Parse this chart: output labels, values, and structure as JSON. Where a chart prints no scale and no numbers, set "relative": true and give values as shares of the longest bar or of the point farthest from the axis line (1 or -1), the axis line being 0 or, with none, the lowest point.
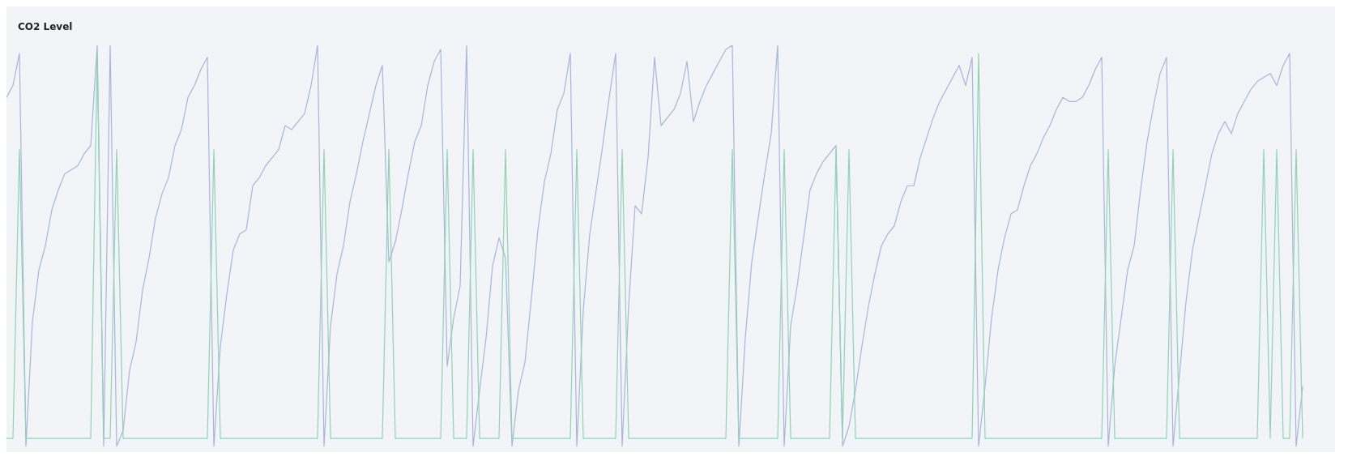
{
  "chart_data": {
    "type": "line",
    "title": "CO2 Level",
    "relative": true,
    "tick_labels": false,
    "marker": "none",
    "line_style": "solid",
    "categories": [
      null,
      null,
      null,
      null,
      null,
      null,
      null,
      null,
      null,
      null,
      null,
      null,
      null,
      null,
      null,
      null,
      null,
      null,
      null,
      null,
      null,
      null,
      null,
      null,
      null,
      null,
      null,
      null,
      null,
      null,
      null,
      null,
      null,
      null,
      null,
      null,
      null,
      null,
      null,
      null,
      null,
      null,
      null,
      null,
      null,
      null,
      null,
      null,
      null,
      null,
      null,
      null,
      null,
      null,
      null,
      null,
      null,
      null,
      null,
      null,
      null,
      null,
      null,
      null,
      null,
      null,
      null,
      null,
      null,
      null,
      null,
      null,
      null,
      null,
      null,
      null,
      null,
      null,
      null,
      null,
      null,
      null,
      null,
      null,
      null,
      null,
      null,
      null,
      null,
      null,
      null,
      null,
      null,
      null,
      null,
      null,
      null,
      null,
      null,
      null,
      null,
      null,
      null,
      null,
      null,
      null,
      null,
      null,
      null,
      null,
      null,
      null,
      null,
      null,
      null,
      null,
      null,
      null,
      null,
      null,
      null,
      null,
      null,
      null,
      null,
      null,
      null,
      null,
      null,
      null,
      null,
      null,
      null,
      null,
      null,
      null,
      null,
      null,
      null,
      null,
      null,
      null,
      null,
      null,
      null,
      null,
      null,
      null,
      null,
      null,
      null,
      null,
      null,
      null,
      null,
      null,
      null,
      null,
      null,
      null,
      null,
      null,
      null,
      null,
      null,
      null,
      null,
      null,
      null,
      null,
      null,
      null,
      null,
      null,
      null,
      null,
      null,
      null,
      null,
      null,
      null,
      null,
      null,
      null,
      null,
      null,
      null,
      null,
      null,
      null,
      null,
      null,
      null,
      null,
      null,
      null,
      null,
      null,
      null,
      null,
      null
    ],
    "series": [
      {
        "color": "#a9b4d8",
        "values": [
          0.87,
          0.9,
          0.98,
          0,
          0.31,
          0.44,
          0.5,
          0.59,
          0.64,
          0.68,
          0.69,
          0.7,
          0.73,
          0.75,
          1.0,
          0,
          1.0,
          0,
          0.04,
          0.19,
          0.26,
          0.39,
          0.47,
          0.57,
          0.63,
          0.67,
          0.75,
          0.79,
          0.87,
          0.9,
          0.94,
          0.97,
          0,
          0.25,
          0.38,
          0.49,
          0.53,
          0.54,
          0.65,
          0.67,
          0.7,
          0.72,
          0.74,
          0.8,
          0.79,
          0.81,
          0.83,
          0.9,
          1.0,
          0,
          0.3,
          0.43,
          0.5,
          0.61,
          0.68,
          0.76,
          0.83,
          0.9,
          0.95,
          0.46,
          0.51,
          0.59,
          0.68,
          0.76,
          0.8,
          0.9,
          0.96,
          0.99,
          0.2,
          0.32,
          0.4,
          1.0,
          0,
          0.14,
          0.27,
          0.45,
          0.52,
          0.47,
          0,
          0.14,
          0.21,
          0.37,
          0.54,
          0.66,
          0.73,
          0.84,
          0.88,
          0.98,
          0,
          0.34,
          0.53,
          0.64,
          0.75,
          0.87,
          0.98,
          0,
          0.35,
          0.6,
          0.58,
          0.72,
          0.97,
          0.8,
          0.82,
          0.84,
          0.88,
          0.96,
          0.81,
          0.86,
          0.9,
          0.93,
          0.96,
          0.99,
          1.0,
          0,
          0.27,
          0.46,
          0.57,
          0.68,
          0.78,
          1.0,
          0,
          0.3,
          0.4,
          0.52,
          0.64,
          0.68,
          0.71,
          0.73,
          0.75,
          0,
          0.05,
          0.14,
          0.25,
          0.35,
          0.43,
          0.5,
          0.53,
          0.55,
          0.61,
          0.65,
          0.65,
          0.72,
          0.77,
          0.82,
          0.86,
          0.89,
          0.92,
          0.95,
          0.9,
          0.97,
          0,
          0.15,
          0.32,
          0.44,
          0.52,
          0.58,
          0.59,
          0.65,
          0.7,
          0.73,
          0.77,
          0.8,
          0.84,
          0.87,
          0.86,
          0.86,
          0.87,
          0.9,
          0.94,
          0.97,
          0,
          0.2,
          0.32,
          0.44,
          0.5,
          0.64,
          0.76,
          0.85,
          0.93,
          0.97,
          0,
          0.18,
          0.36,
          0.49,
          0.57,
          0.65,
          0.73,
          0.78,
          0.81,
          0.78,
          0.83,
          0.86,
          0.89,
          0.91,
          0.92,
          0.93,
          0.9,
          0.95,
          0.98,
          0,
          0.15
        ]
      },
      {
        "color": "#8fd3b6",
        "values": [
          0.02,
          0.02,
          0.74,
          0.02,
          0.02,
          0.02,
          0.02,
          0.02,
          0.02,
          0.02,
          0.02,
          0.02,
          0.02,
          0.02,
          0.98,
          0.02,
          0.02,
          0.74,
          0.02,
          0.02,
          0.02,
          0.02,
          0.02,
          0.02,
          0.02,
          0.02,
          0.02,
          0.02,
          0.02,
          0.02,
          0.02,
          0.02,
          0.74,
          0.02,
          0.02,
          0.02,
          0.02,
          0.02,
          0.02,
          0.02,
          0.02,
          0.02,
          0.02,
          0.02,
          0.02,
          0.02,
          0.02,
          0.02,
          0.02,
          0.74,
          0.02,
          0.02,
          0.02,
          0.02,
          0.02,
          0.02,
          0.02,
          0.02,
          0.02,
          0.74,
          0.02,
          0.02,
          0.02,
          0.02,
          0.02,
          0.02,
          0.02,
          0.02,
          0.74,
          0.02,
          0.02,
          0.02,
          0.74,
          0.02,
          0.02,
          0.02,
          0.02,
          0.74,
          0.02,
          0.02,
          0.02,
          0.02,
          0.02,
          0.02,
          0.02,
          0.02,
          0.02,
          0.02,
          0.74,
          0.02,
          0.02,
          0.02,
          0.02,
          0.02,
          0.02,
          0.74,
          0.02,
          0.02,
          0.02,
          0.02,
          0.02,
          0.02,
          0.02,
          0.02,
          0.02,
          0.02,
          0.02,
          0.02,
          0.02,
          0.02,
          0.02,
          0.02,
          0.74,
          0.02,
          0.02,
          0.02,
          0.02,
          0.02,
          0.02,
          0.02,
          0.74,
          0.02,
          0.02,
          0.02,
          0.02,
          0.02,
          0.02,
          0.02,
          0.74,
          0.02,
          0.74,
          0.02,
          0.02,
          0.02,
          0.02,
          0.02,
          0.02,
          0.02,
          0.02,
          0.02,
          0.02,
          0.02,
          0.02,
          0.02,
          0.02,
          0.02,
          0.02,
          0.02,
          0.02,
          0.02,
          0.98,
          0.02,
          0.02,
          0.02,
          0.02,
          0.02,
          0.02,
          0.02,
          0.02,
          0.02,
          0.02,
          0.02,
          0.02,
          0.02,
          0.02,
          0.02,
          0.02,
          0.02,
          0.02,
          0.02,
          0.74,
          0.02,
          0.02,
          0.02,
          0.02,
          0.02,
          0.02,
          0.02,
          0.02,
          0.02,
          0.74,
          0.02,
          0.02,
          0.02,
          0.02,
          0.02,
          0.02,
          0.02,
          0.02,
          0.02,
          0.02,
          0.02,
          0.02,
          0.02,
          0.74,
          0.02,
          0.74,
          0.02,
          0.02,
          0.74,
          0.02
        ]
      }
    ]
  }
}
